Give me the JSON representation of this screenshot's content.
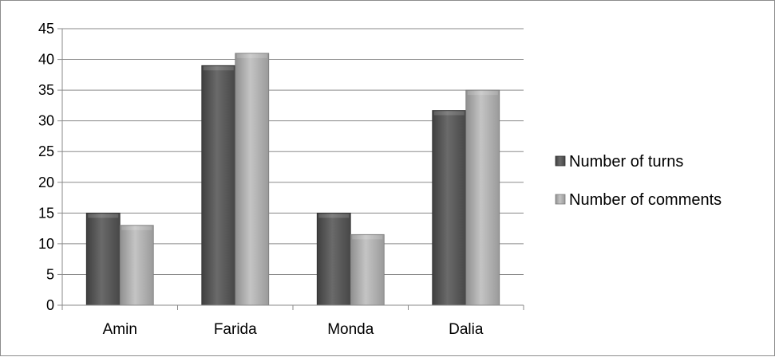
{
  "chart_data": {
    "type": "bar",
    "categories": [
      "Amin",
      "Farida",
      "Monda",
      "Dalia"
    ],
    "series": [
      {
        "name": "Number of turns",
        "values": [
          15,
          39,
          15,
          31.7
        ],
        "color": "#5a5a5a"
      },
      {
        "name": "Number of comments",
        "values": [
          13,
          41,
          11.5,
          35
        ],
        "color": "#a6a6a6"
      }
    ],
    "ylim": [
      0,
      45
    ],
    "yticks": [
      "0",
      "5",
      "10",
      "15",
      "20",
      "25",
      "30",
      "35",
      "40",
      "45"
    ],
    "grid": true,
    "legend": "right",
    "title": "",
    "xlabel": "",
    "ylabel": ""
  }
}
